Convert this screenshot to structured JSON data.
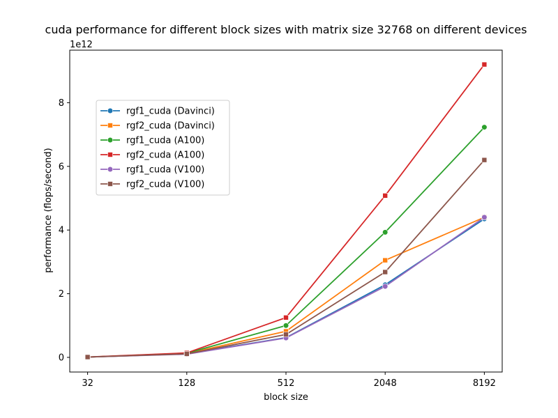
{
  "chart_data": {
    "type": "line",
    "title": "cuda performance for different block sizes with matrix size 32768 on different devices",
    "xlabel": "block size",
    "ylabel": "performance (flops/second)",
    "y_offset_label": "1e12",
    "x_scale": "log2",
    "x": [
      32,
      128,
      512,
      2048,
      8192
    ],
    "x_tick_labels": [
      "32",
      "128",
      "512",
      "2048",
      "8192"
    ],
    "y_ticks": [
      0,
      2,
      4,
      6,
      8
    ],
    "y_tick_labels": [
      "0",
      "2",
      "4",
      "6",
      "8"
    ],
    "ylim": [
      -0.46,
      9.65
    ],
    "y_unit_multiplier": 1000000000000.0,
    "grid": false,
    "legend_position": "upper-left",
    "series": [
      {
        "name": "rgf1_cuda (Davinci)",
        "color": "#1f77b4",
        "marker": "circle",
        "values": [
          0.01,
          0.11,
          0.62,
          2.28,
          4.35
        ]
      },
      {
        "name": "rgf2_cuda (Davinci)",
        "color": "#ff7f0e",
        "marker": "square",
        "values": [
          0.01,
          0.12,
          0.82,
          3.05,
          4.4
        ]
      },
      {
        "name": "rgf1_cuda (A100)",
        "color": "#2ca02c",
        "marker": "circle",
        "values": [
          0.01,
          0.13,
          1.0,
          3.93,
          7.23
        ]
      },
      {
        "name": "rgf2_cuda (A100)",
        "color": "#d62728",
        "marker": "square",
        "values": [
          0.01,
          0.14,
          1.25,
          5.08,
          9.2
        ]
      },
      {
        "name": "rgf1_cuda (V100)",
        "color": "#9467bd",
        "marker": "circle",
        "values": [
          0.01,
          0.1,
          0.61,
          2.23,
          4.4
        ]
      },
      {
        "name": "rgf2_cuda (V100)",
        "color": "#8c564b",
        "marker": "square",
        "values": [
          0.01,
          0.11,
          0.72,
          2.68,
          6.2
        ]
      }
    ]
  }
}
